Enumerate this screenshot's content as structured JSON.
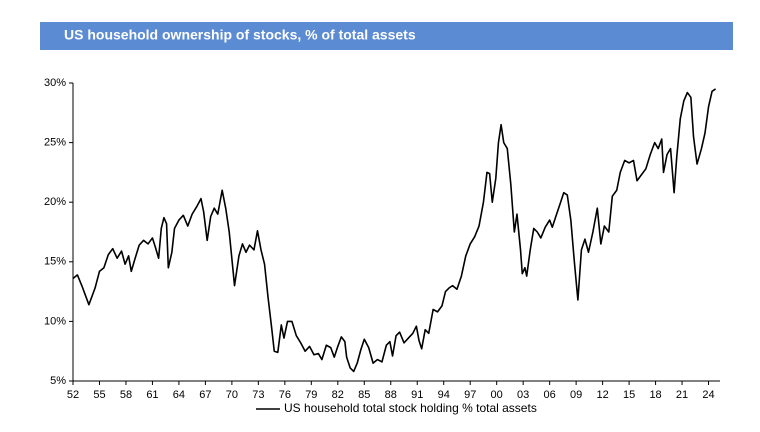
{
  "chart_data": {
    "type": "line",
    "title": "US household ownership of stocks, % of total assets",
    "x": [
      1952,
      1952.5,
      1953,
      1953.5,
      1953.8,
      1954.5,
      1955,
      1955.5,
      1956,
      1956.5,
      1957,
      1957.5,
      1957.9,
      1958.3,
      1958.6,
      1959,
      1959.5,
      1960,
      1960.5,
      1961,
      1961.3,
      1961.7,
      1962,
      1962.3,
      1962.6,
      1962.8,
      1963.2,
      1963.5,
      1964,
      1964.5,
      1965,
      1965.5,
      1966,
      1966.5,
      1966.8,
      1967.2,
      1967.6,
      1968,
      1968.4,
      1968.9,
      1969.3,
      1969.7,
      1970.3,
      1970.8,
      1971.2,
      1971.6,
      1972,
      1972.5,
      1972.9,
      1973.3,
      1973.7,
      1974.1,
      1974.5,
      1974.8,
      1975.2,
      1975.6,
      1975.9,
      1976.3,
      1976.8,
      1977.3,
      1977.8,
      1978.3,
      1978.8,
      1979.3,
      1979.8,
      1980.2,
      1980.7,
      1981.2,
      1981.6,
      1982,
      1982.4,
      1982.8,
      1983,
      1983.4,
      1983.8,
      1984.2,
      1984.6,
      1985,
      1985.5,
      1986,
      1986.5,
      1987,
      1987.5,
      1987.9,
      1988.2,
      1988.6,
      1989,
      1989.5,
      1990,
      1990.5,
      1990.9,
      1991.2,
      1991.5,
      1991.9,
      1992.3,
      1992.8,
      1993.3,
      1993.8,
      1994.2,
      1994.6,
      1995,
      1995.5,
      1996,
      1996.5,
      1997,
      1997.5,
      1998,
      1998.5,
      1998.9,
      1999.2,
      1999.5,
      1999.9,
      2000.2,
      2000.5,
      2000.8,
      2001.2,
      2001.6,
      2002,
      2002.3,
      2002.7,
      2002.9,
      2003.2,
      2003.4,
      2003.8,
      2004.2,
      2004.6,
      2005,
      2005.5,
      2006,
      2006.3,
      2006.7,
      2007.2,
      2007.6,
      2008,
      2008.4,
      2008.8,
      2009.2,
      2009.6,
      2010,
      2010.4,
      2010.9,
      2011.4,
      2011.8,
      2012.2,
      2012.7,
      2013.1,
      2013.6,
      2014,
      2014.5,
      2015,
      2015.5,
      2015.9,
      2016.4,
      2016.9,
      2017.4,
      2017.9,
      2018.3,
      2018.7,
      2018.9,
      2019.3,
      2019.7,
      2020.1,
      2020.4,
      2020.8,
      2021.2,
      2021.6,
      2022,
      2022.3,
      2022.7,
      2023.2,
      2023.6,
      2024,
      2024.4,
      2024.8
    ],
    "series": [
      {
        "name": "US household total stock holding % total assets",
        "color": "#000000",
        "values": [
          13.6,
          13.9,
          13.0,
          12.0,
          11.4,
          12.8,
          14.2,
          14.5,
          15.6,
          16.1,
          15.3,
          15.9,
          14.8,
          15.5,
          14.2,
          15.2,
          16.4,
          16.8,
          16.5,
          17.0,
          16.3,
          15.3,
          17.8,
          18.7,
          18.2,
          14.5,
          15.8,
          17.8,
          18.5,
          18.9,
          18.0,
          19.0,
          19.6,
          20.3,
          19.2,
          16.8,
          18.8,
          19.5,
          19.0,
          21.0,
          19.5,
          17.5,
          13.0,
          15.5,
          16.5,
          15.8,
          16.4,
          16.0,
          17.6,
          16.0,
          14.8,
          12.0,
          9.5,
          7.5,
          7.4,
          9.7,
          8.6,
          10.0,
          10.0,
          8.8,
          8.2,
          7.5,
          7.9,
          7.2,
          7.3,
          6.8,
          8.0,
          7.8,
          7.0,
          7.9,
          8.7,
          8.3,
          7.0,
          6.1,
          5.8,
          6.5,
          7.6,
          8.5,
          7.8,
          6.5,
          6.8,
          6.6,
          8.0,
          8.3,
          7.1,
          8.8,
          9.1,
          8.2,
          8.6,
          9.0,
          9.6,
          8.4,
          7.7,
          9.3,
          9.0,
          11.0,
          10.8,
          11.3,
          12.5,
          12.8,
          13.0,
          12.7,
          13.8,
          15.5,
          16.5,
          17.1,
          18.0,
          20.0,
          22.5,
          22.4,
          20.0,
          22.0,
          25.0,
          26.5,
          25.0,
          24.5,
          21.5,
          17.5,
          19.0,
          16.0,
          14.0,
          14.5,
          13.8,
          16.0,
          17.8,
          17.5,
          17.0,
          17.9,
          18.5,
          17.9,
          18.8,
          19.9,
          20.8,
          20.6,
          18.5,
          15.0,
          11.8,
          16.0,
          16.9,
          15.8,
          17.5,
          19.5,
          16.5,
          18.0,
          17.5,
          20.5,
          21.0,
          22.5,
          23.5,
          23.3,
          23.5,
          21.8,
          22.3,
          22.8,
          24.0,
          25.0,
          24.5,
          25.3,
          22.5,
          24.0,
          24.5,
          20.8,
          23.8,
          27.0,
          28.5,
          29.2,
          28.8,
          25.5,
          23.2,
          24.5,
          25.8,
          28.0,
          29.3,
          29.5
        ]
      }
    ],
    "xlim": [
      1952,
      2025.3
    ],
    "xticks": [
      {
        "value": 1952,
        "label": "52"
      },
      {
        "value": 1955,
        "label": "55"
      },
      {
        "value": 1958,
        "label": "58"
      },
      {
        "value": 1961,
        "label": "61"
      },
      {
        "value": 1964,
        "label": "64"
      },
      {
        "value": 1967,
        "label": "67"
      },
      {
        "value": 1970,
        "label": "70"
      },
      {
        "value": 1973,
        "label": "73"
      },
      {
        "value": 1976,
        "label": "76"
      },
      {
        "value": 1979,
        "label": "79"
      },
      {
        "value": 1982,
        "label": "82"
      },
      {
        "value": 1985,
        "label": "85"
      },
      {
        "value": 1988,
        "label": "88"
      },
      {
        "value": 1991,
        "label": "91"
      },
      {
        "value": 1994,
        "label": "94"
      },
      {
        "value": 1997,
        "label": "97"
      },
      {
        "value": 2000,
        "label": "00"
      },
      {
        "value": 2003,
        "label": "03"
      },
      {
        "value": 2006,
        "label": "06"
      },
      {
        "value": 2009,
        "label": "09"
      },
      {
        "value": 2012,
        "label": "12"
      },
      {
        "value": 2015,
        "label": "15"
      },
      {
        "value": 2018,
        "label": "18"
      },
      {
        "value": 2021,
        "label": "21"
      },
      {
        "value": 2024,
        "label": "24"
      }
    ],
    "ylim": [
      5,
      30
    ],
    "yticks": [
      {
        "value": 5,
        "label": "5%"
      },
      {
        "value": 10,
        "label": "10%"
      },
      {
        "value": 15,
        "label": "15%"
      },
      {
        "value": 20,
        "label": "20%"
      },
      {
        "value": 25,
        "label": "25%"
      },
      {
        "value": 30,
        "label": "30%"
      }
    ],
    "grid": false,
    "legend": "bottom"
  }
}
